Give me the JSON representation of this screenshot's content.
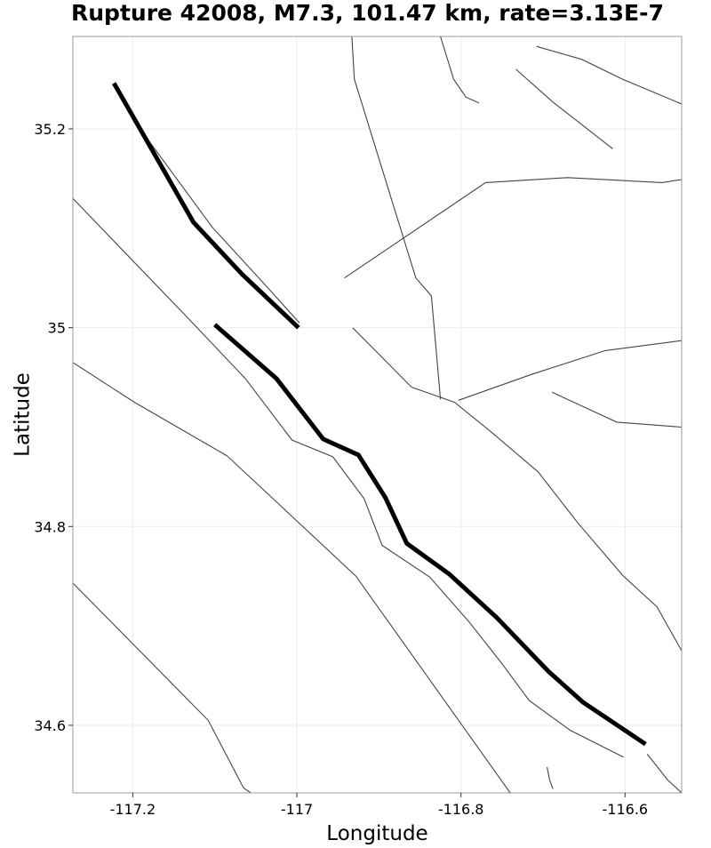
{
  "title": "Rupture 42008, M7.3, 101.47 km, rate=3.13E-7",
  "chart_data": {
    "type": "map",
    "xlabel": "Longitude",
    "ylabel": "Latitude",
    "xlim": [
      -117.273,
      -116.531
    ],
    "ylim": [
      34.532,
      35.293
    ],
    "xticks": [
      -117.2,
      -117,
      -116.8,
      -116.6
    ],
    "xtick_labels": [
      "-117.2",
      "-117",
      "-116.8",
      "-116.6"
    ],
    "yticks": [
      34.6,
      34.8,
      35.0,
      35.2
    ],
    "ytick_labels": [
      "34.6",
      "34.8",
      "35",
      "35.2"
    ],
    "grid": true,
    "colors": {
      "fault": "#444444",
      "rupture": "#000000",
      "grid": "#ebebeb",
      "frame": "#999999"
    },
    "faults": [
      [
        [
          -117.2,
          35.21
        ],
        [
          -117.103,
          35.101
        ],
        [
          -117.033,
          35.038
        ],
        [
          -116.997,
          35.005
        ]
      ],
      [
        [
          -117.273,
          35.13
        ],
        [
          -117.133,
          35.01
        ],
        [
          -117.063,
          34.949
        ],
        [
          -117.006,
          34.887
        ],
        [
          -116.956,
          34.87
        ],
        [
          -116.918,
          34.828
        ],
        [
          -116.896,
          34.781
        ],
        [
          -116.838,
          34.749
        ],
        [
          -116.79,
          34.704
        ],
        [
          -116.75,
          34.662
        ],
        [
          -116.717,
          34.625
        ],
        [
          -116.667,
          34.595
        ],
        [
          -116.602,
          34.568
        ]
      ],
      [
        [
          -117.273,
          34.965
        ],
        [
          -117.198,
          34.925
        ],
        [
          -117.085,
          34.871
        ],
        [
          -116.928,
          34.75
        ],
        [
          -116.74,
          34.532
        ]
      ],
      [
        [
          -117.273,
          34.743
        ],
        [
          -117.108,
          34.605
        ],
        [
          -117.065,
          34.537
        ],
        [
          -117.056,
          34.532
        ]
      ],
      [
        [
          -116.933,
          35.293
        ],
        [
          -116.93,
          35.25
        ],
        [
          -116.855,
          35.05
        ],
        [
          -116.836,
          35.032
        ],
        [
          -116.825,
          34.928
        ]
      ],
      [
        [
          -116.942,
          35.05
        ],
        [
          -116.77,
          35.146
        ],
        [
          -116.67,
          35.151
        ],
        [
          -116.555,
          35.146
        ],
        [
          -116.531,
          35.149
        ]
      ],
      [
        [
          -116.932,
          35.0
        ],
        [
          -116.86,
          34.94
        ],
        [
          -116.808,
          34.925
        ],
        [
          -116.763,
          34.895
        ],
        [
          -116.706,
          34.855
        ],
        [
          -116.658,
          34.804
        ],
        [
          -116.603,
          34.751
        ],
        [
          -116.561,
          34.719
        ],
        [
          -116.531,
          34.675
        ]
      ],
      [
        [
          -116.803,
          34.927
        ],
        [
          -116.714,
          34.953
        ],
        [
          -116.624,
          34.977
        ],
        [
          -116.531,
          34.987
        ]
      ],
      [
        [
          -116.689,
          34.935
        ],
        [
          -116.61,
          34.905
        ],
        [
          -116.531,
          34.9
        ]
      ],
      [
        [
          -116.825,
          35.293
        ],
        [
          -116.809,
          35.25
        ],
        [
          -116.794,
          35.232
        ],
        [
          -116.778,
          35.226
        ]
      ],
      [
        [
          -116.733,
          35.26
        ],
        [
          -116.688,
          35.227
        ],
        [
          -116.615,
          35.18
        ]
      ],
      [
        [
          -116.708,
          35.283
        ],
        [
          -116.653,
          35.27
        ],
        [
          -116.603,
          35.25
        ],
        [
          -116.531,
          35.225
        ]
      ],
      [
        [
          -116.695,
          34.558
        ],
        [
          -116.692,
          34.545
        ],
        [
          -116.688,
          34.536
        ]
      ],
      [
        [
          -116.573,
          34.571
        ],
        [
          -116.548,
          34.545
        ],
        [
          -116.531,
          34.532
        ]
      ]
    ],
    "rupture": [
      [
        [
          -117.223,
          35.246
        ],
        [
          -117.126,
          35.106
        ],
        [
          -117.067,
          35.054
        ],
        [
          -116.998,
          35.0
        ]
      ],
      [
        [
          -117.1,
          35.003
        ],
        [
          -117.025,
          34.949
        ],
        [
          -116.968,
          34.888
        ],
        [
          -116.925,
          34.872
        ],
        [
          -116.892,
          34.829
        ],
        [
          -116.866,
          34.783
        ],
        [
          -116.814,
          34.752
        ],
        [
          -116.756,
          34.708
        ],
        [
          -116.693,
          34.654
        ],
        [
          -116.651,
          34.623
        ],
        [
          -116.575,
          34.581
        ]
      ]
    ]
  }
}
